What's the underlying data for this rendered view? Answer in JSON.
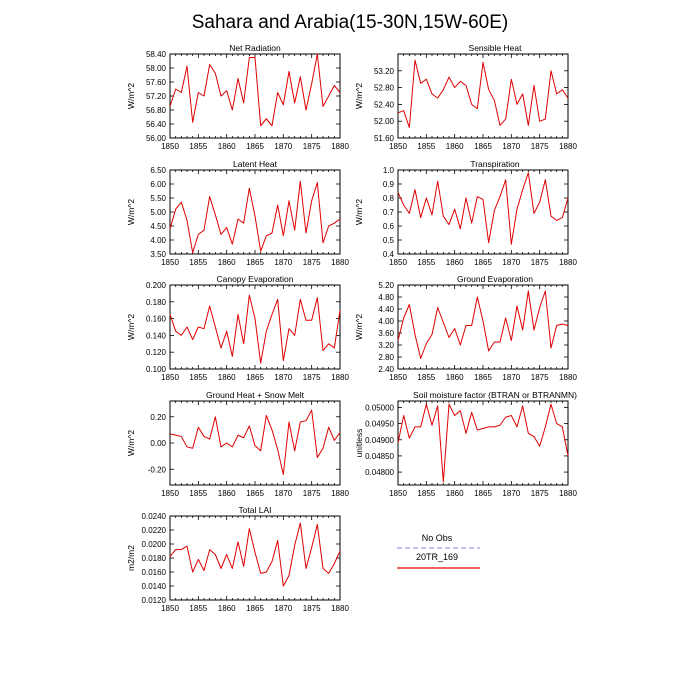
{
  "figure_title": "Sahara and Arabia(15-30N,15W-60E)",
  "legend": {
    "items": [
      {
        "label": "No Obs",
        "color": "#9a9ae0",
        "style": "dashed"
      },
      {
        "label": "20TR_169",
        "color": "#e00000",
        "style": "solid"
      }
    ]
  },
  "colors": {
    "model": "#e00000"
  },
  "chart_data": [
    {
      "type": "line",
      "title": "Net Radiation",
      "ylabel": "W/m^2",
      "xlim": [
        1850,
        1880
      ],
      "ylim": [
        56.0,
        58.4
      ],
      "xticks": [
        "1850",
        "1855",
        "1860",
        "1865",
        "1870",
        "1875",
        "1880"
      ],
      "yticks": [
        "56.00",
        "56.40",
        "56.80",
        "57.20",
        "57.60",
        "58.00",
        "58.40"
      ],
      "x": [
        1850,
        1851,
        1852,
        1853,
        1854,
        1855,
        1856,
        1857,
        1858,
        1859,
        1860,
        1861,
        1862,
        1863,
        1864,
        1865,
        1866,
        1867,
        1868,
        1869,
        1870,
        1871,
        1872,
        1873,
        1874,
        1875,
        1876,
        1877,
        1878,
        1879,
        1880
      ],
      "series": [
        {
          "name": "20TR_169",
          "values": [
            56.9,
            57.4,
            57.3,
            58.05,
            56.45,
            57.3,
            57.2,
            58.1,
            57.85,
            57.2,
            57.35,
            56.8,
            57.7,
            57.0,
            58.3,
            58.3,
            56.35,
            56.55,
            56.35,
            57.3,
            56.95,
            57.9,
            57.0,
            57.75,
            56.8,
            57.55,
            58.4,
            56.9,
            57.2,
            57.5,
            57.3
          ]
        }
      ]
    },
    {
      "type": "line",
      "title": "Sensible Heat",
      "ylabel": "W/m^2",
      "xlim": [
        1850,
        1880
      ],
      "ylim": [
        51.6,
        53.6
      ],
      "xticks": [
        "1850",
        "1855",
        "1860",
        "1865",
        "1870",
        "1875",
        "1880"
      ],
      "yticks": [
        "51.60",
        "52.00",
        "52.40",
        "52.80",
        "53.20"
      ],
      "x": [
        1850,
        1851,
        1852,
        1853,
        1854,
        1855,
        1856,
        1857,
        1858,
        1859,
        1860,
        1861,
        1862,
        1863,
        1864,
        1865,
        1866,
        1867,
        1868,
        1869,
        1870,
        1871,
        1872,
        1873,
        1874,
        1875,
        1876,
        1877,
        1878,
        1879,
        1880
      ],
      "series": [
        {
          "name": "20TR_169",
          "values": [
            52.2,
            52.25,
            51.85,
            53.45,
            52.9,
            53.0,
            52.65,
            52.55,
            52.75,
            53.05,
            52.8,
            52.95,
            52.85,
            52.4,
            52.3,
            53.4,
            52.75,
            52.5,
            51.9,
            52.05,
            53.0,
            52.4,
            52.65,
            51.9,
            52.85,
            52.0,
            52.05,
            53.2,
            52.65,
            52.75,
            52.55
          ]
        }
      ]
    },
    {
      "type": "line",
      "title": "Latent Heat",
      "ylabel": "W/m^2",
      "xlim": [
        1850,
        1880
      ],
      "ylim": [
        3.5,
        6.5
      ],
      "xticks": [
        "1850",
        "1855",
        "1860",
        "1865",
        "1870",
        "1875",
        "1880"
      ],
      "yticks": [
        "3.50",
        "4.00",
        "4.50",
        "5.00",
        "5.50",
        "6.00",
        "6.50"
      ],
      "x": [
        1850,
        1851,
        1852,
        1853,
        1854,
        1855,
        1856,
        1857,
        1858,
        1859,
        1860,
        1861,
        1862,
        1863,
        1864,
        1865,
        1866,
        1867,
        1868,
        1869,
        1870,
        1871,
        1872,
        1873,
        1874,
        1875,
        1876,
        1877,
        1878,
        1879,
        1880
      ],
      "series": [
        {
          "name": "20TR_169",
          "values": [
            4.4,
            5.1,
            5.35,
            4.7,
            3.55,
            4.2,
            4.35,
            5.55,
            4.9,
            4.2,
            4.45,
            3.85,
            4.75,
            4.6,
            5.85,
            4.85,
            3.6,
            4.15,
            4.25,
            5.25,
            4.15,
            5.4,
            4.35,
            6.1,
            4.25,
            5.4,
            6.05,
            3.9,
            4.5,
            4.6,
            4.75
          ]
        }
      ]
    },
    {
      "type": "line",
      "title": "Transpiration",
      "ylabel": "W/m^2",
      "xlim": [
        1850,
        1880
      ],
      "ylim": [
        0.4,
        1.0
      ],
      "xticks": [
        "1850",
        "1855",
        "1860",
        "1865",
        "1870",
        "1875",
        "1880"
      ],
      "yticks": [
        "0.4",
        "0.5",
        "0.6",
        "0.7",
        "0.8",
        "0.9",
        "1.0"
      ],
      "x": [
        1850,
        1851,
        1852,
        1853,
        1854,
        1855,
        1856,
        1857,
        1858,
        1859,
        1860,
        1861,
        1862,
        1863,
        1864,
        1865,
        1866,
        1867,
        1868,
        1869,
        1870,
        1871,
        1872,
        1873,
        1874,
        1875,
        1876,
        1877,
        1878,
        1879,
        1880
      ],
      "series": [
        {
          "name": "20TR_169",
          "values": [
            0.84,
            0.75,
            0.69,
            0.86,
            0.66,
            0.8,
            0.68,
            0.92,
            0.67,
            0.61,
            0.72,
            0.58,
            0.8,
            0.62,
            0.81,
            0.79,
            0.48,
            0.71,
            0.81,
            0.93,
            0.47,
            0.72,
            0.86,
            0.98,
            0.69,
            0.77,
            0.93,
            0.67,
            0.64,
            0.66,
            0.8
          ]
        }
      ]
    },
    {
      "type": "line",
      "title": "Canopy Evaporation",
      "ylabel": "W/m^2",
      "xlim": [
        1850,
        1880
      ],
      "ylim": [
        0.1,
        0.2
      ],
      "xticks": [
        "1850",
        "1855",
        "1860",
        "1865",
        "1870",
        "1875",
        "1880"
      ],
      "yticks": [
        "0.100",
        "0.120",
        "0.140",
        "0.160",
        "0.180",
        "0.200"
      ],
      "x": [
        1850,
        1851,
        1852,
        1853,
        1854,
        1855,
        1856,
        1857,
        1858,
        1859,
        1860,
        1861,
        1862,
        1863,
        1864,
        1865,
        1866,
        1867,
        1868,
        1869,
        1870,
        1871,
        1872,
        1873,
        1874,
        1875,
        1876,
        1877,
        1878,
        1879,
        1880
      ],
      "series": [
        {
          "name": "20TR_169",
          "values": [
            0.165,
            0.145,
            0.14,
            0.15,
            0.135,
            0.15,
            0.148,
            0.175,
            0.15,
            0.125,
            0.145,
            0.115,
            0.165,
            0.13,
            0.188,
            0.16,
            0.107,
            0.145,
            0.165,
            0.183,
            0.11,
            0.148,
            0.14,
            0.183,
            0.158,
            0.158,
            0.185,
            0.122,
            0.13,
            0.125,
            0.17
          ]
        }
      ]
    },
    {
      "type": "line",
      "title": "Ground Evaporation",
      "ylabel": "W/m^2",
      "xlim": [
        1850,
        1880
      ],
      "ylim": [
        2.4,
        5.2
      ],
      "xticks": [
        "1850",
        "1855",
        "1860",
        "1865",
        "1870",
        "1875",
        "1880"
      ],
      "yticks": [
        "2.40",
        "2.80",
        "3.20",
        "3.60",
        "4.00",
        "4.40",
        "4.80",
        "5.20"
      ],
      "x": [
        1850,
        1851,
        1852,
        1853,
        1854,
        1855,
        1856,
        1857,
        1858,
        1859,
        1860,
        1861,
        1862,
        1863,
        1864,
        1865,
        1866,
        1867,
        1868,
        1869,
        1870,
        1871,
        1872,
        1873,
        1874,
        1875,
        1876,
        1877,
        1878,
        1879,
        1880
      ],
      "series": [
        {
          "name": "20TR_169",
          "values": [
            3.35,
            4.1,
            4.55,
            3.55,
            2.75,
            3.25,
            3.55,
            4.45,
            3.95,
            3.45,
            3.75,
            3.2,
            3.85,
            3.85,
            4.8,
            4.0,
            3.0,
            3.3,
            3.3,
            4.1,
            3.35,
            4.5,
            3.7,
            5.0,
            3.7,
            4.45,
            5.0,
            3.1,
            3.85,
            3.9,
            3.85
          ]
        }
      ]
    },
    {
      "type": "line",
      "title": "Ground Heat + Snow Melt",
      "ylabel": "W/m^2",
      "xlim": [
        1850,
        1880
      ],
      "ylim": [
        -0.32,
        0.32
      ],
      "xticks": [
        "1850",
        "1855",
        "1860",
        "1865",
        "1870",
        "1875",
        "1880"
      ],
      "yticks": [
        "-0.20",
        "0.00",
        "0.20"
      ],
      "x": [
        1850,
        1851,
        1852,
        1853,
        1854,
        1855,
        1856,
        1857,
        1858,
        1859,
        1860,
        1861,
        1862,
        1863,
        1864,
        1865,
        1866,
        1867,
        1868,
        1869,
        1870,
        1871,
        1872,
        1873,
        1874,
        1875,
        1876,
        1877,
        1878,
        1879,
        1880
      ],
      "series": [
        {
          "name": "20TR_169",
          "values": [
            0.07,
            0.06,
            0.05,
            -0.03,
            -0.04,
            0.12,
            0.05,
            0.03,
            0.2,
            -0.03,
            0.0,
            -0.03,
            0.06,
            0.04,
            0.13,
            -0.02,
            -0.06,
            0.21,
            0.1,
            -0.05,
            -0.24,
            0.16,
            -0.06,
            0.16,
            0.17,
            0.25,
            -0.11,
            -0.04,
            0.12,
            0.02,
            0.08
          ]
        }
      ]
    },
    {
      "type": "line",
      "title": "Soil moisture factor (BTRAN or BTRANMN)",
      "ylabel": "unitless",
      "xlim": [
        1850,
        1880
      ],
      "ylim": [
        0.0476,
        0.0502
      ],
      "xticks": [
        "1850",
        "1855",
        "1860",
        "1865",
        "1870",
        "1875",
        "1880"
      ],
      "yticks": [
        "0.04800",
        "0.04850",
        "0.04900",
        "0.04950",
        "0.05000"
      ],
      "x": [
        1850,
        1851,
        1852,
        1853,
        1854,
        1855,
        1856,
        1857,
        1858,
        1859,
        1860,
        1861,
        1862,
        1863,
        1864,
        1865,
        1866,
        1867,
        1868,
        1869,
        1870,
        1871,
        1872,
        1873,
        1874,
        1875,
        1876,
        1877,
        1878,
        1879,
        1880
      ],
      "series": [
        {
          "name": "20TR_169",
          "values": [
            0.0489,
            0.04975,
            0.04905,
            0.0494,
            0.0494,
            0.0501,
            0.04945,
            0.05005,
            0.0477,
            0.0501,
            0.04975,
            0.0499,
            0.0492,
            0.04985,
            0.0493,
            0.04935,
            0.0494,
            0.0494,
            0.04945,
            0.0497,
            0.04975,
            0.0494,
            0.05005,
            0.0492,
            0.0491,
            0.0488,
            0.0494,
            0.0501,
            0.0495,
            0.0494,
            0.0485
          ]
        }
      ]
    },
    {
      "type": "line",
      "title": "Total LAI",
      "ylabel": "m2/m2",
      "xlim": [
        1850,
        1880
      ],
      "ylim": [
        0.012,
        0.024
      ],
      "xticks": [
        "1850",
        "1855",
        "1860",
        "1865",
        "1870",
        "1875",
        "1880"
      ],
      "yticks": [
        "0.0120",
        "0.0140",
        "0.0160",
        "0.0180",
        "0.0200",
        "0.0220",
        "0.0240"
      ],
      "x": [
        1850,
        1851,
        1852,
        1853,
        1854,
        1855,
        1856,
        1857,
        1858,
        1859,
        1860,
        1861,
        1862,
        1863,
        1864,
        1865,
        1866,
        1867,
        1868,
        1869,
        1870,
        1871,
        1872,
        1873,
        1874,
        1875,
        1876,
        1877,
        1878,
        1879,
        1880
      ],
      "series": [
        {
          "name": "20TR_169",
          "values": [
            0.0182,
            0.0192,
            0.0192,
            0.0197,
            0.016,
            0.0178,
            0.0162,
            0.0192,
            0.0185,
            0.0165,
            0.0185,
            0.0165,
            0.0203,
            0.0168,
            0.0222,
            0.0188,
            0.0158,
            0.016,
            0.0175,
            0.0205,
            0.014,
            0.0155,
            0.0198,
            0.023,
            0.0165,
            0.0195,
            0.0228,
            0.0165,
            0.0158,
            0.0172,
            0.019
          ]
        }
      ]
    }
  ]
}
